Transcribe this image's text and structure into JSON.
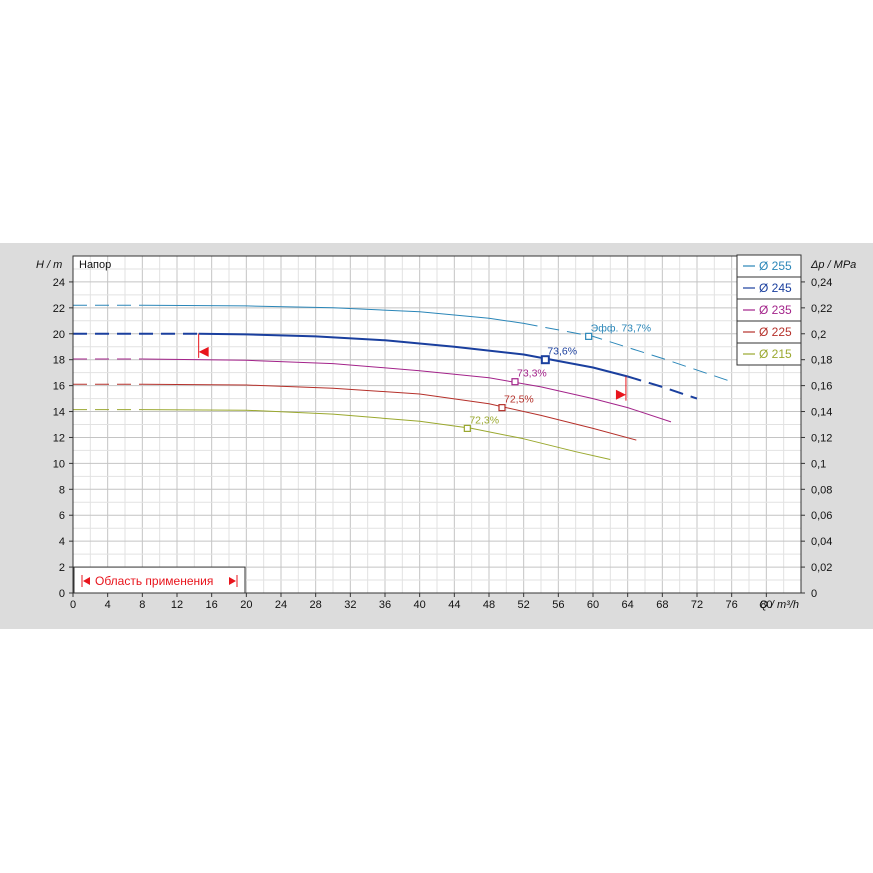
{
  "chart_data": {
    "type": "line",
    "y_axis_title": "H / m",
    "y_axis_title_right": "Δp / MPa",
    "x_axis_title": "Q / m³/h",
    "plot_label": "Напор",
    "xlim": [
      0,
      84
    ],
    "ylim": [
      0,
      26
    ],
    "y2lim": [
      0,
      0.26
    ],
    "x_ticks": [
      "0",
      "4",
      "8",
      "12",
      "16",
      "20",
      "24",
      "28",
      "32",
      "36",
      "40",
      "44",
      "48",
      "52",
      "56",
      "60",
      "64",
      "68",
      "72",
      "76",
      "80"
    ],
    "y_ticks": [
      "0",
      "2",
      "4",
      "6",
      "8",
      "10",
      "12",
      "14",
      "16",
      "18",
      "20",
      "22",
      "24"
    ],
    "y2_ticks": [
      "0",
      "0,02",
      "0,04",
      "0,06",
      "0,08",
      "0,1",
      "0,12",
      "0,14",
      "0,16",
      "0,18",
      "0,2",
      "0,22",
      "0,24"
    ],
    "grid": true,
    "legend_position": "top-right",
    "series": [
      {
        "name": "Ø 255",
        "color": "#2a86b8",
        "width": 1,
        "solid": [
          [
            8,
            22.2
          ],
          [
            20,
            22.15
          ],
          [
            30,
            22.0
          ],
          [
            40,
            21.7
          ],
          [
            48,
            21.2
          ],
          [
            52,
            20.8
          ]
        ],
        "dashed_before": [
          [
            0,
            22.2
          ],
          [
            8,
            22.2
          ]
        ],
        "dashed_after": [
          [
            52,
            20.8
          ],
          [
            60,
            19.8
          ],
          [
            68,
            18.1
          ],
          [
            76,
            16.3
          ]
        ],
        "bep": {
          "x": 59.5,
          "y": 19.8,
          "label": "Эфф.  73,7%"
        }
      },
      {
        "name": "Ø 245",
        "color": "#1a3f9e",
        "width": 2,
        "solid": [
          [
            14.5,
            20.0
          ],
          [
            20,
            19.95
          ],
          [
            28,
            19.8
          ],
          [
            36,
            19.5
          ],
          [
            44,
            19.0
          ],
          [
            52,
            18.4
          ],
          [
            56,
            17.9
          ],
          [
            60,
            17.4
          ],
          [
            64,
            16.7
          ]
        ],
        "dashed_before": [
          [
            0,
            20.0
          ],
          [
            14.5,
            20.0
          ]
        ],
        "dashed_after": [
          [
            64,
            16.7
          ],
          [
            68,
            15.9
          ],
          [
            72,
            15.0
          ]
        ],
        "bep": {
          "x": 54.5,
          "y": 18.0,
          "label": "73,6%"
        }
      },
      {
        "name": "Ø 235",
        "color": "#a3238a",
        "width": 1,
        "solid": [
          [
            8,
            18.05
          ],
          [
            20,
            17.95
          ],
          [
            30,
            17.7
          ],
          [
            40,
            17.15
          ],
          [
            48,
            16.6
          ],
          [
            54,
            15.9
          ],
          [
            60,
            15.0
          ],
          [
            64,
            14.3
          ],
          [
            69,
            13.2
          ]
        ],
        "dashed_before": [
          [
            0,
            18.05
          ],
          [
            8,
            18.05
          ]
        ],
        "dashed_after": [],
        "bep": {
          "x": 51.0,
          "y": 16.3,
          "label": "73,3%"
        }
      },
      {
        "name": "Ø 225",
        "color": "#b5302a",
        "width": 1,
        "solid": [
          [
            8,
            16.1
          ],
          [
            20,
            16.05
          ],
          [
            30,
            15.8
          ],
          [
            40,
            15.35
          ],
          [
            48,
            14.6
          ],
          [
            54,
            13.7
          ],
          [
            60,
            12.7
          ],
          [
            65,
            11.8
          ]
        ],
        "dashed_before": [
          [
            0,
            16.1
          ],
          [
            8,
            16.1
          ]
        ],
        "dashed_after": [],
        "bep": {
          "x": 49.5,
          "y": 14.3,
          "label": "72,5%"
        }
      },
      {
        "name": "Ø 215",
        "color": "#9aa82e",
        "width": 1,
        "solid": [
          [
            8,
            14.15
          ],
          [
            20,
            14.1
          ],
          [
            30,
            13.8
          ],
          [
            40,
            13.25
          ],
          [
            46,
            12.7
          ],
          [
            52,
            11.9
          ],
          [
            58,
            10.9
          ],
          [
            62,
            10.3
          ]
        ],
        "dashed_before": [
          [
            0,
            14.15
          ],
          [
            8,
            14.15
          ]
        ],
        "dashed_after": [],
        "bep": {
          "x": 45.5,
          "y": 12.7,
          "label": "72,3%"
        }
      }
    ],
    "application_range": {
      "label": "Область применения",
      "q_min": 14.5,
      "q_max": 63.8,
      "h_min": 18.6,
      "h_max": 16.7
    }
  }
}
